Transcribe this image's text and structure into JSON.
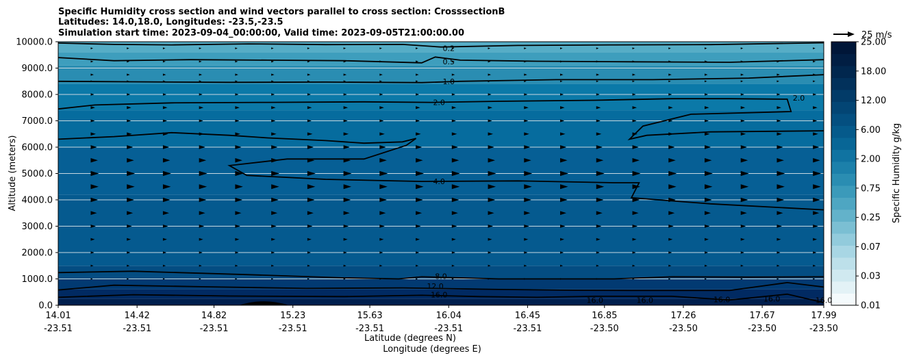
{
  "chart_data": {
    "type": "contour",
    "title_lines": [
      "Specific Humidity cross section and wind vectors parallel to cross section: CrosssectionB",
      "Latitudes: 14.0,18.0, Longitudes: -23.5,-23.5",
      "Simulation start time: 2023-09-04_00:00:00, Valid time: 2023-09-05T21:00:00.00"
    ],
    "ylabel": "Altitude (meters)",
    "xlabel_lines": [
      "Latitude (degrees N)",
      "Longitude (degrees E)"
    ],
    "ylim": [
      0,
      10000
    ],
    "y_ticks": [
      "0.0",
      "1000.0",
      "2000.0",
      "3000.0",
      "4000.0",
      "5000.0",
      "6000.0",
      "7000.0",
      "8000.0",
      "9000.0",
      "10000.0"
    ],
    "x_ticks": [
      {
        "lat": "14.01",
        "lon": "-23.51"
      },
      {
        "lat": "14.42",
        "lon": "-23.51"
      },
      {
        "lat": "14.82",
        "lon": "-23.51"
      },
      {
        "lat": "15.23",
        "lon": "-23.51"
      },
      {
        "lat": "15.63",
        "lon": "-23.51"
      },
      {
        "lat": "16.04",
        "lon": "-23.51"
      },
      {
        "lat": "16.45",
        "lon": "-23.51"
      },
      {
        "lat": "16.85",
        "lon": "-23.50"
      },
      {
        "lat": "17.26",
        "lon": "-23.50"
      },
      {
        "lat": "17.67",
        "lon": "-23.50"
      },
      {
        "lat": "17.99",
        "lon": "-23.50"
      }
    ],
    "contour_labels": [
      {
        "level": "0.2",
        "lat": 16.04,
        "alt": 9750
      },
      {
        "level": "0.5",
        "lat": 16.04,
        "alt": 9250
      },
      {
        "level": "1.0",
        "lat": 16.04,
        "alt": 8500
      },
      {
        "level": "2.0",
        "lat": 15.99,
        "alt": 7700
      },
      {
        "level": "2.0",
        "lat": 17.86,
        "alt": 7870
      },
      {
        "level": "4.0",
        "lat": 15.99,
        "alt": 4700
      },
      {
        "level": "8.0",
        "lat": 16.0,
        "alt": 1100
      },
      {
        "level": "12.0",
        "lat": 15.97,
        "alt": 730
      },
      {
        "level": "16.0",
        "lat": 15.99,
        "alt": 400
      },
      {
        "level": "16.0",
        "lat": 16.8,
        "alt": 200
      },
      {
        "level": "16.0",
        "lat": 17.06,
        "alt": 200
      },
      {
        "level": "16.0",
        "lat": 17.46,
        "alt": 220
      },
      {
        "level": "16.0",
        "lat": 17.72,
        "alt": 250
      },
      {
        "level": "16.0",
        "lat": 17.99,
        "alt": 200
      }
    ],
    "colorbar": {
      "label": "Specific Humidity g/kg",
      "ticks": [
        "0.01",
        "0.03",
        "0.07",
        "0.25",
        "0.75",
        "2.00",
        "6.00",
        "12.00",
        "18.00",
        "25.00"
      ],
      "colors": [
        "#f4fafc",
        "#e3f2f6",
        "#d0e9f0",
        "#bde0ea",
        "#a8d6e4",
        "#92cbdc",
        "#7bbfd3",
        "#63b2ca",
        "#4ea6c2",
        "#3b9aba",
        "#2a8db2",
        "#1c80aa",
        "#1073a1",
        "#086696",
        "#055a8b",
        "#044f80",
        "#034574",
        "#023b68",
        "#02315b",
        "#01274e",
        "#011e43",
        "#001638"
      ]
    },
    "quiver_key": "25 m/s",
    "wind_rows": [
      {
        "alt": 9750,
        "len": 0.15
      },
      {
        "alt": 9250,
        "len": 0.2
      },
      {
        "alt": 8750,
        "len": 0.25
      },
      {
        "alt": 8500,
        "len": 0.15
      },
      {
        "alt": 8000,
        "len": 0.3
      },
      {
        "alt": 7500,
        "len": 0.45
      },
      {
        "alt": 7000,
        "len": 0.4
      },
      {
        "alt": 6500,
        "len": 0.55
      },
      {
        "alt": 6000,
        "len": 0.7
      },
      {
        "alt": 5500,
        "len": 0.85
      },
      {
        "alt": 5000,
        "len": 1.0
      },
      {
        "alt": 4500,
        "len": 0.95
      },
      {
        "alt": 4000,
        "len": 0.85
      },
      {
        "alt": 3500,
        "len": 0.7
      },
      {
        "alt": 3000,
        "len": 0.55
      },
      {
        "alt": 2500,
        "len": 0.4
      },
      {
        "alt": 2000,
        "len": 0.3
      },
      {
        "alt": 1500,
        "len": 0.2
      },
      {
        "alt": 1000,
        "len": 0.1
      }
    ]
  }
}
